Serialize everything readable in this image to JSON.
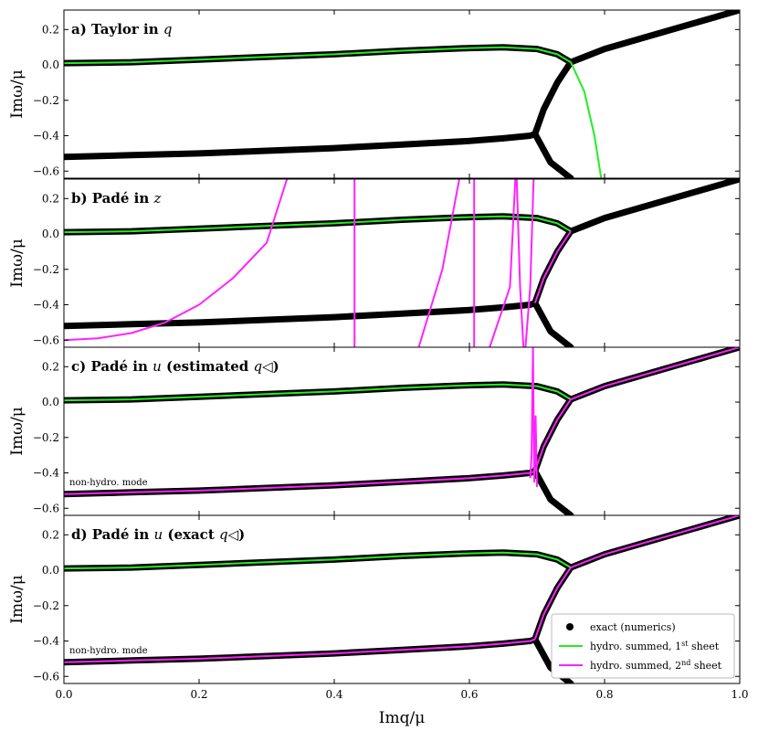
{
  "chart_data": {
    "type": "line",
    "xlabel": "Imq/μ",
    "ylabel": "Imω/μ",
    "xlim": [
      0.0,
      1.0
    ],
    "ylim": [
      -0.64,
      0.31
    ],
    "xticks": [
      0.0,
      0.2,
      0.4,
      0.6,
      0.8,
      1.0
    ],
    "xtick_labels": [
      "0.0",
      "0.2",
      "0.4",
      "0.6",
      "0.8",
      "1.0"
    ],
    "yticks": [
      0.2,
      0.0,
      -0.2,
      -0.4,
      -0.6
    ],
    "ytick_labels": [
      "0.2",
      "0.0",
      "−0.2",
      "−0.4",
      "−0.6"
    ],
    "legend": {
      "location": "lower-right",
      "entries": [
        {
          "label": "exact (numerics)",
          "marker": "dot",
          "color": "#000000"
        },
        {
          "label": "hydro. summed, 1st sheet",
          "color": "#22ee22"
        },
        {
          "label": "hydro. summed, 2nd sheet",
          "color": "#ff22ff"
        }
      ]
    },
    "annotation": "non-hydro. mode",
    "exact_numerics": {
      "upper_branch": {
        "x": [
          0.0,
          0.1,
          0.2,
          0.3,
          0.4,
          0.5,
          0.6,
          0.65,
          0.7,
          0.73,
          0.75
        ],
        "y": [
          0.01,
          0.015,
          0.03,
          0.045,
          0.06,
          0.08,
          0.095,
          0.1,
          0.09,
          0.06,
          0.015
        ]
      },
      "lower_branch": {
        "x": [
          0.0,
          0.1,
          0.2,
          0.3,
          0.4,
          0.5,
          0.6,
          0.65,
          0.69,
          0.697
        ],
        "y": [
          -0.52,
          -0.51,
          -0.5,
          -0.485,
          -0.47,
          -0.45,
          -0.43,
          -0.415,
          -0.4,
          -0.39
        ]
      },
      "s_curve": {
        "x": [
          0.697,
          0.71,
          0.73,
          0.75
        ],
        "y": [
          -0.39,
          -0.25,
          -0.1,
          0.015
        ]
      },
      "downward_tail": {
        "x": [
          0.697,
          0.72,
          0.75
        ],
        "y": [
          -0.39,
          -0.55,
          -0.64
        ]
      },
      "upper_right_tail": {
        "x": [
          0.75,
          0.8,
          0.9,
          1.0
        ],
        "y": [
          0.015,
          0.09,
          0.2,
          0.31
        ]
      }
    },
    "panels": [
      {
        "id": "a",
        "title_prefix": "a) Taylor in ",
        "title_var": "q",
        "title_suffix": "",
        "show_annotation": false,
        "show_legend": false,
        "series": [
          {
            "name": "hydro. summed, 1st sheet",
            "color": "#22ee22",
            "x": [
              0.0,
              0.1,
              0.2,
              0.3,
              0.4,
              0.5,
              0.6,
              0.65,
              0.7,
              0.73,
              0.75,
              0.77,
              0.785,
              0.795
            ],
            "y": [
              0.01,
              0.015,
              0.03,
              0.045,
              0.06,
              0.08,
              0.095,
              0.1,
              0.09,
              0.06,
              0.015,
              -0.15,
              -0.4,
              -0.64
            ]
          }
        ]
      },
      {
        "id": "b",
        "title_prefix": "b) Padé in ",
        "title_var": "z",
        "title_suffix": "",
        "show_annotation": false,
        "show_legend": false,
        "series": [
          {
            "name": "hydro. summed, 1st sheet",
            "color": "#22ee22",
            "x": [
              0.0,
              0.1,
              0.2,
              0.3,
              0.4,
              0.5,
              0.6,
              0.65,
              0.7,
              0.73,
              0.75
            ],
            "y": [
              0.01,
              0.015,
              0.03,
              0.045,
              0.06,
              0.08,
              0.095,
              0.1,
              0.09,
              0.06,
              0.015
            ]
          },
          {
            "name": "hydro. summed, 2nd sheet",
            "color": "#ff22ff",
            "x": [
              0.697,
              0.71,
              0.73,
              0.75
            ],
            "y": [
              -0.39,
              -0.25,
              -0.1,
              0.015
            ]
          },
          {
            "name": "2nd sheet branch A",
            "color": "#ff22ff",
            "x": [
              0.0,
              0.05,
              0.1,
              0.15,
              0.2,
              0.25,
              0.3,
              0.33
            ],
            "y": [
              -0.6,
              -0.59,
              -0.56,
              -0.5,
              -0.4,
              -0.25,
              -0.05,
              0.31
            ]
          },
          {
            "name": "2nd sheet branch B",
            "color": "#ff22ff",
            "x": [
              0.43,
              0.43
            ],
            "y": [
              0.31,
              -0.64
            ]
          },
          {
            "name": "2nd sheet branch C",
            "color": "#ff22ff",
            "x": [
              0.525,
              0.56,
              0.585
            ],
            "y": [
              -0.64,
              -0.2,
              0.31
            ]
          },
          {
            "name": "2nd sheet branch D",
            "color": "#ff22ff",
            "x": [
              0.607,
              0.607
            ],
            "y": [
              0.31,
              -0.64
            ]
          },
          {
            "name": "2nd sheet branch E",
            "color": "#ff22ff",
            "x": [
              0.63,
              0.66,
              0.668
            ],
            "y": [
              -0.64,
              -0.3,
              0.31
            ]
          },
          {
            "name": "2nd sheet branch F",
            "color": "#ff22ff",
            "x": [
              0.67,
              0.675,
              0.68
            ],
            "y": [
              0.31,
              -0.3,
              -0.64
            ]
          },
          {
            "name": "2nd sheet branch G",
            "color": "#ff22ff",
            "x": [
              0.683,
              0.69,
              0.695
            ],
            "y": [
              -0.64,
              -0.3,
              0.31
            ]
          }
        ]
      },
      {
        "id": "c",
        "title_prefix": "c) Padé in ",
        "title_var": "u",
        "title_suffix": " (estimated ",
        "title_sub": "q◁",
        "title_end": ")",
        "show_annotation": true,
        "show_legend": false,
        "series": [
          {
            "name": "hydro. summed, 1st sheet",
            "color": "#22ee22",
            "x": [
              0.0,
              0.1,
              0.2,
              0.3,
              0.4,
              0.5,
              0.6,
              0.65,
              0.7,
              0.73,
              0.75
            ],
            "y": [
              0.01,
              0.015,
              0.03,
              0.045,
              0.06,
              0.08,
              0.095,
              0.1,
              0.09,
              0.06,
              0.015
            ]
          },
          {
            "name": "hydro. summed, 2nd sheet",
            "color": "#ff22ff",
            "x": [
              0.0,
              0.1,
              0.2,
              0.3,
              0.4,
              0.5,
              0.6,
              0.65,
              0.69,
              0.697
            ],
            "y": [
              -0.52,
              -0.51,
              -0.5,
              -0.485,
              -0.47,
              -0.45,
              -0.43,
              -0.415,
              -0.4,
              -0.39
            ]
          },
          {
            "name": "2nd sheet upper",
            "color": "#ff22ff",
            "x": [
              0.697,
              0.71,
              0.73,
              0.75,
              0.8,
              0.9,
              1.0
            ],
            "y": [
              -0.39,
              -0.25,
              -0.1,
              0.015,
              0.09,
              0.2,
              0.31
            ]
          },
          {
            "name": "2nd sheet spikes",
            "color": "#ff22ff",
            "x": [
              0.69,
              0.692,
              0.694,
              0.696,
              0.698,
              0.7
            ],
            "y": [
              -0.43,
              -0.3,
              0.31,
              -0.45,
              -0.08,
              -0.48
            ]
          }
        ]
      },
      {
        "id": "d",
        "title_prefix": "d) Padé in ",
        "title_var": "u",
        "title_suffix": " (exact ",
        "title_sub": "q◁",
        "title_end": ")",
        "show_annotation": true,
        "show_legend": true,
        "series": [
          {
            "name": "hydro. summed, 1st sheet",
            "color": "#22ee22",
            "x": [
              0.0,
              0.1,
              0.2,
              0.3,
              0.4,
              0.5,
              0.6,
              0.65,
              0.7,
              0.73,
              0.75
            ],
            "y": [
              0.01,
              0.015,
              0.03,
              0.045,
              0.06,
              0.08,
              0.095,
              0.1,
              0.09,
              0.06,
              0.015
            ]
          },
          {
            "name": "hydro. summed, 2nd sheet",
            "color": "#ff22ff",
            "x": [
              0.0,
              0.1,
              0.2,
              0.3,
              0.4,
              0.5,
              0.6,
              0.65,
              0.69,
              0.697
            ],
            "y": [
              -0.52,
              -0.51,
              -0.5,
              -0.485,
              -0.47,
              -0.45,
              -0.43,
              -0.415,
              -0.4,
              -0.39
            ]
          },
          {
            "name": "2nd sheet upper",
            "color": "#ff22ff",
            "x": [
              0.697,
              0.71,
              0.73,
              0.75,
              0.8,
              0.9,
              1.0
            ],
            "y": [
              -0.39,
              -0.25,
              -0.1,
              0.015,
              0.09,
              0.2,
              0.31
            ]
          }
        ]
      }
    ]
  }
}
